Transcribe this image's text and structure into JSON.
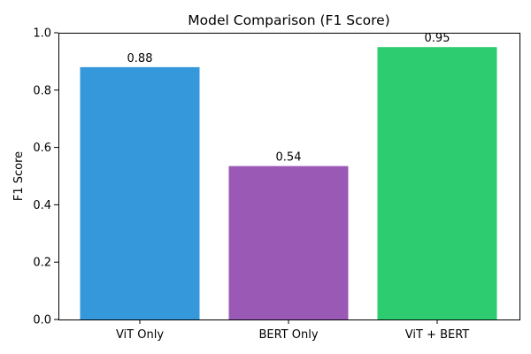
{
  "chart_data": {
    "type": "bar",
    "title": "Model Comparison (F1 Score)",
    "xlabel": "",
    "ylabel": "F1 Score",
    "categories": [
      "ViT Only",
      "BERT Only",
      "ViT + BERT"
    ],
    "values": [
      0.88,
      0.535,
      0.95
    ],
    "value_labels": [
      "0.88",
      "0.54",
      "0.95"
    ],
    "colors": [
      "#3498db",
      "#9b59b6",
      "#2ecc71"
    ],
    "ylim": [
      0,
      1.0
    ],
    "yticks": [
      0.0,
      0.2,
      0.4,
      0.6,
      0.8,
      1.0
    ],
    "ytick_labels": [
      "0.0",
      "0.2",
      "0.4",
      "0.6",
      "0.8",
      "1.0"
    ],
    "grid": false,
    "legend": "none"
  }
}
